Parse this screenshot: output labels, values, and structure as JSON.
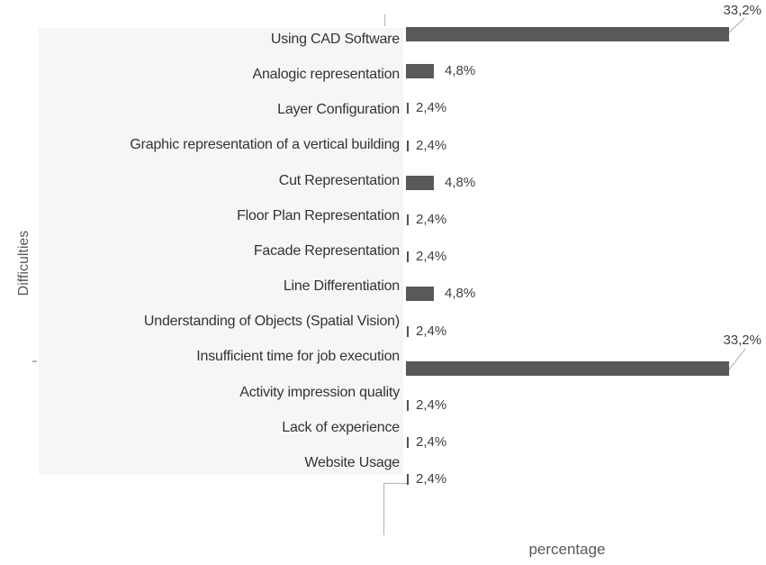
{
  "chart_data": {
    "type": "bar",
    "orientation": "horizontal",
    "title": "",
    "xlabel": "percentage",
    "ylabel": "Difficulties",
    "categories": [
      "Using CAD Software",
      "Analogic representation",
      "Layer Configuration",
      "Graphic representation of a vertical building",
      "Cut Representation",
      "Floor Plan Representation",
      "Facade Representation",
      "Line Differentiation",
      "Understanding of Objects (Spatial Vision)",
      "Insufficient time for job execution",
      "Activity impression quality",
      "Lack of experience",
      "Website Usage"
    ],
    "values": [
      33.2,
      4.8,
      2.4,
      2.4,
      4.8,
      2.4,
      2.4,
      4.8,
      2.4,
      33.2,
      2.4,
      2.4,
      2.4
    ],
    "value_labels": [
      "33,2%",
      "4,8%",
      "2,4%",
      "2,4%",
      "4,8%",
      "2,4%",
      "2,4%",
      "4,8%",
      "2,4%",
      "33,2%",
      "2,4%",
      "2,4%",
      "2,4%"
    ],
    "xlim": [
      0,
      35
    ],
    "grid": false,
    "legend": "none",
    "colors": {
      "bar": "#595959",
      "tick": "#4f4f4f",
      "panel_background": "#f5f6f8",
      "category_text": "#333333",
      "value_text": "#404040",
      "axis_title_text": "#595959",
      "leader_line": "#bdbdbd"
    }
  }
}
